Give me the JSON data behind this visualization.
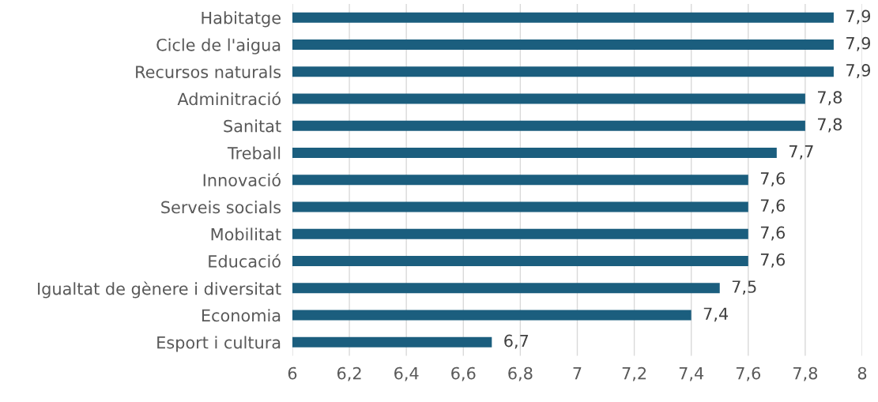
{
  "chart_data": {
    "type": "bar",
    "orientation": "horizontal",
    "categories": [
      "Habitatge",
      "Cicle de l'aigua",
      "Recursos naturals",
      "Adminitració",
      "Sanitat",
      "Treball",
      "Innovació",
      "Serveis socials",
      "Mobilitat",
      "Educació",
      "Igualtat de gènere i diversitat",
      "Economia",
      "Esport i cultura"
    ],
    "values": [
      7.9,
      7.9,
      7.9,
      7.8,
      7.8,
      7.7,
      7.6,
      7.6,
      7.6,
      7.6,
      7.5,
      7.4,
      6.7
    ],
    "value_labels": [
      "7,9",
      "7,9",
      "7,9",
      "7,8",
      "7,8",
      "7,7",
      "7,6",
      "7,6",
      "7,6",
      "7,6",
      "7,5",
      "7,4",
      "6,7"
    ],
    "color": "#1b5e7e",
    "xlim": [
      6,
      8
    ],
    "xticks": [
      6,
      {
        "value": 6.2,
        "label": "6,2"
      },
      {
        "value": 6.4,
        "label": "6,4"
      },
      {
        "value": 6.6,
        "label": "6,6"
      },
      {
        "value": 6.8,
        "label": "6,8"
      },
      7,
      {
        "value": 7.2,
        "label": "7,2"
      },
      {
        "value": 7.4,
        "label": "7,4"
      },
      {
        "value": 7.6,
        "label": "7,6"
      },
      {
        "value": 7.8,
        "label": "7,8"
      },
      8
    ],
    "grid": "x"
  }
}
